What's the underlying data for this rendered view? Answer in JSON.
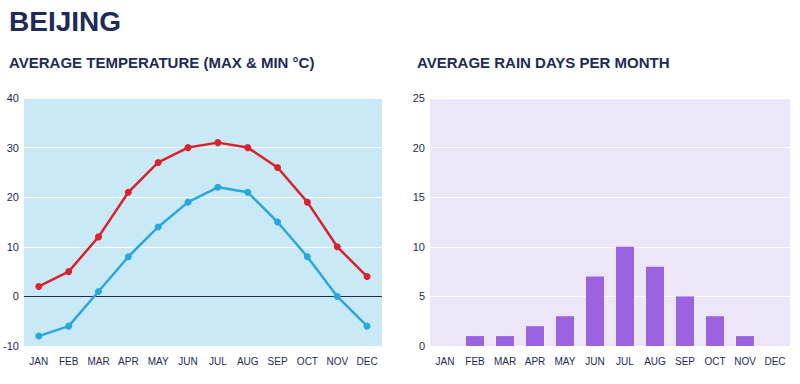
{
  "title": "BEIJING",
  "chart_data": [
    {
      "type": "line",
      "title": "AVERAGE TEMPERATURE (MAX & MIN °C)",
      "categories": [
        "JAN",
        "FEB",
        "MAR",
        "APR",
        "MAY",
        "JUN",
        "JUL",
        "AUG",
        "SEP",
        "OCT",
        "NOV",
        "DEC"
      ],
      "series": [
        {
          "color": "#d8232f",
          "values": [
            2,
            5,
            12,
            21,
            27,
            30,
            31,
            30,
            26,
            19,
            10,
            4
          ]
        },
        {
          "color": "#29a8df",
          "values": [
            -8,
            -6,
            1,
            8,
            14,
            19,
            22,
            21,
            15,
            8,
            0,
            -6
          ]
        }
      ],
      "marker": "circle",
      "ylim": [
        -10,
        40
      ],
      "yticks": [
        -10,
        0,
        10,
        20,
        30,
        40
      ],
      "grid": true
    },
    {
      "type": "bar",
      "title": "AVERAGE RAIN DAYS PER MONTH",
      "categories": [
        "JAN",
        "FEB",
        "MAR",
        "APR",
        "MAY",
        "JUN",
        "JUL",
        "AUG",
        "SEP",
        "OCT",
        "NOV",
        "DEC"
      ],
      "values": [
        0,
        1,
        1,
        2,
        3,
        7,
        10,
        8,
        5,
        3,
        1,
        0
      ],
      "color": "#9b63df",
      "ylim": [
        0,
        25
      ],
      "yticks": [
        0,
        5,
        10,
        15,
        20,
        25
      ],
      "grid": true
    }
  ]
}
